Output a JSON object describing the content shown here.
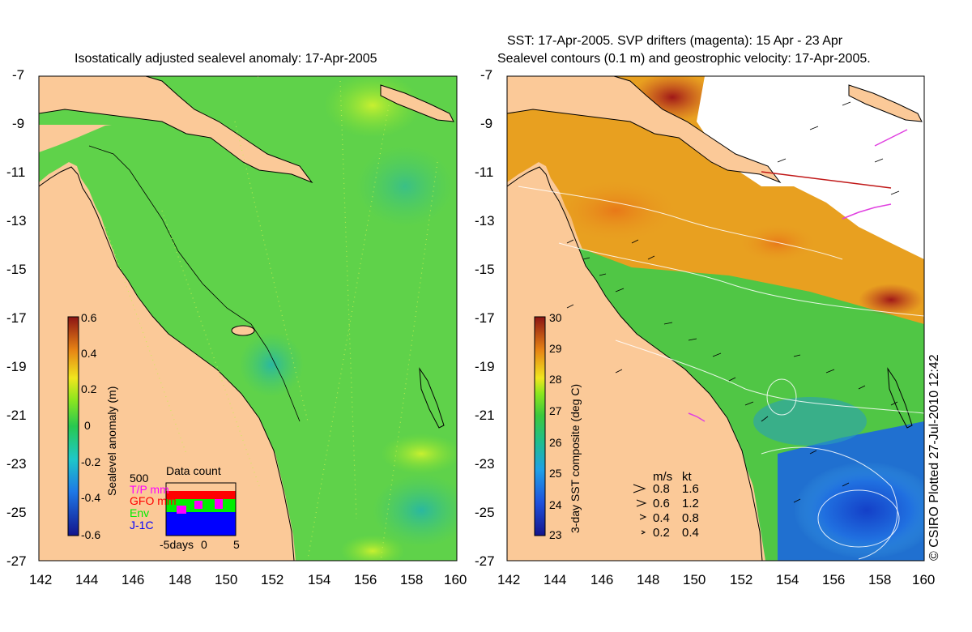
{
  "left_panel": {
    "title": "Isostatically adjusted sealevel anomaly: 17-Apr-2005",
    "y_ticks": [
      "-7",
      "-9",
      "-11",
      "-13",
      "-15",
      "-17",
      "-19",
      "-21",
      "-23",
      "-25",
      "-27"
    ],
    "x_ticks": [
      "142",
      "144",
      "146",
      "148",
      "150",
      "152",
      "154",
      "156",
      "158",
      "160"
    ],
    "colorbar": {
      "label": "Sealevel anomaly (m)",
      "ticks": [
        "0.6",
        "0.4",
        "0.2",
        "0",
        "-0.2",
        "-0.4",
        "-0.6"
      ]
    },
    "data_count": {
      "title": "Data count",
      "max_label": "500",
      "sources": [
        {
          "name": "T/P mm",
          "color": "#ff00ff"
        },
        {
          "name": "GFO mm",
          "color": "#ff0000"
        },
        {
          "name": "Env",
          "color": "#00ee00"
        },
        {
          "name": "J-1C",
          "color": "#0000ff"
        }
      ],
      "x_ticks": [
        "-5days",
        "0",
        "5"
      ]
    }
  },
  "right_panel": {
    "title_line1": "SST: 17-Apr-2005. SVP drifters (magenta): 15 Apr - 23 Apr",
    "title_line2": "Sealevel contours (0.1 m) and geostrophic velocity: 17-Apr-2005.",
    "y_ticks": [
      "-7",
      "-9",
      "-11",
      "-13",
      "-15",
      "-17",
      "-19",
      "-21",
      "-23",
      "-25",
      "-27"
    ],
    "x_ticks": [
      "142",
      "144",
      "146",
      "148",
      "150",
      "152",
      "154",
      "156",
      "158",
      "160"
    ],
    "colorbar": {
      "label": "3-day SST composite (deg C)",
      "ticks": [
        "30",
        "29",
        "28",
        "27",
        "26",
        "25",
        "24",
        "23"
      ]
    },
    "velocity_legend": {
      "header_ms": "m/s",
      "header_kt": "kt",
      "rows": [
        {
          "ms": "0.8",
          "kt": "1.6"
        },
        {
          "ms": "0.6",
          "kt": "1.2"
        },
        {
          "ms": "0.4",
          "kt": "0.8"
        },
        {
          "ms": "0.2",
          "kt": "0.4"
        }
      ]
    }
  },
  "credit": "© CSIRO Plotted 27-Jul-2010 12:42",
  "colors": {
    "land": "#fbc998",
    "sla_ocean": "#5fd24a",
    "sst_warm": "#e8a020",
    "sst_cool": "#2060d0"
  }
}
